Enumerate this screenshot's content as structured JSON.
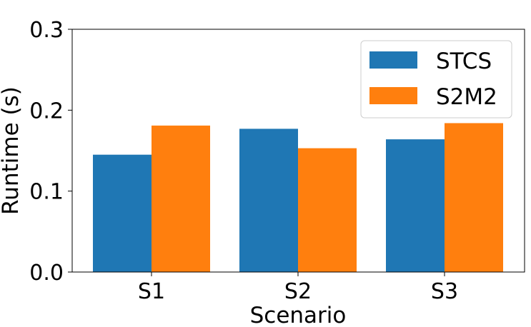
{
  "chart_data": {
    "type": "bar",
    "title": "",
    "xlabel": "Scenario",
    "ylabel": "Runtime (s)",
    "categories": [
      "S1",
      "S2",
      "S3"
    ],
    "series": [
      {
        "name": "STCS",
        "values": [
          0.145,
          0.177,
          0.164
        ],
        "color": "#1f77b4"
      },
      {
        "name": "S2M2",
        "values": [
          0.181,
          0.153,
          0.184
        ],
        "color": "#ff7f0e"
      }
    ],
    "ylim": [
      0,
      0.3
    ],
    "yticks": [
      "0.0",
      "0.1",
      "0.2",
      "0.3"
    ],
    "grid": false,
    "legend_position": "top-right"
  }
}
